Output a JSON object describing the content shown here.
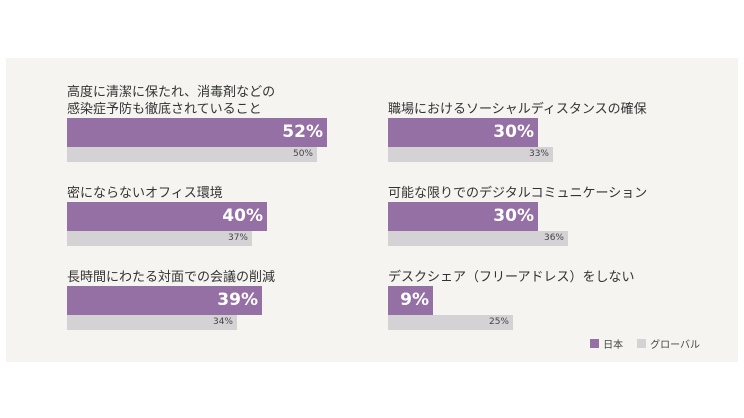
{
  "chart_data": {
    "type": "bar",
    "orientation": "horizontal",
    "categories": [
      "高度に清潔に保たれ、消毒剤などの\n感染症予防も徹底されていること",
      "密にならないオフィス環境",
      "長時間にわたる対面での会議の削減",
      "職場におけるソーシャルディスタンスの確保",
      "可能な限りでのデジタルコミュニケーション",
      "デスクシェア（フリーアドレス）をしない"
    ],
    "series": [
      {
        "name": "日本",
        "color": "#9470a4",
        "values": [
          52,
          40,
          39,
          30,
          30,
          9
        ],
        "labels": [
          "52%",
          "40%",
          "39%",
          "30%",
          "30%",
          "9%"
        ]
      },
      {
        "name": "グローバル",
        "color": "#d5d2d6",
        "values": [
          50,
          37,
          34,
          33,
          36,
          25
        ],
        "labels": [
          "50%",
          "37%",
          "34%",
          "33%",
          "36%",
          "25%"
        ]
      }
    ],
    "xlim": [
      0,
      100
    ],
    "grid": false,
    "legend_position": "bottom-right"
  }
}
